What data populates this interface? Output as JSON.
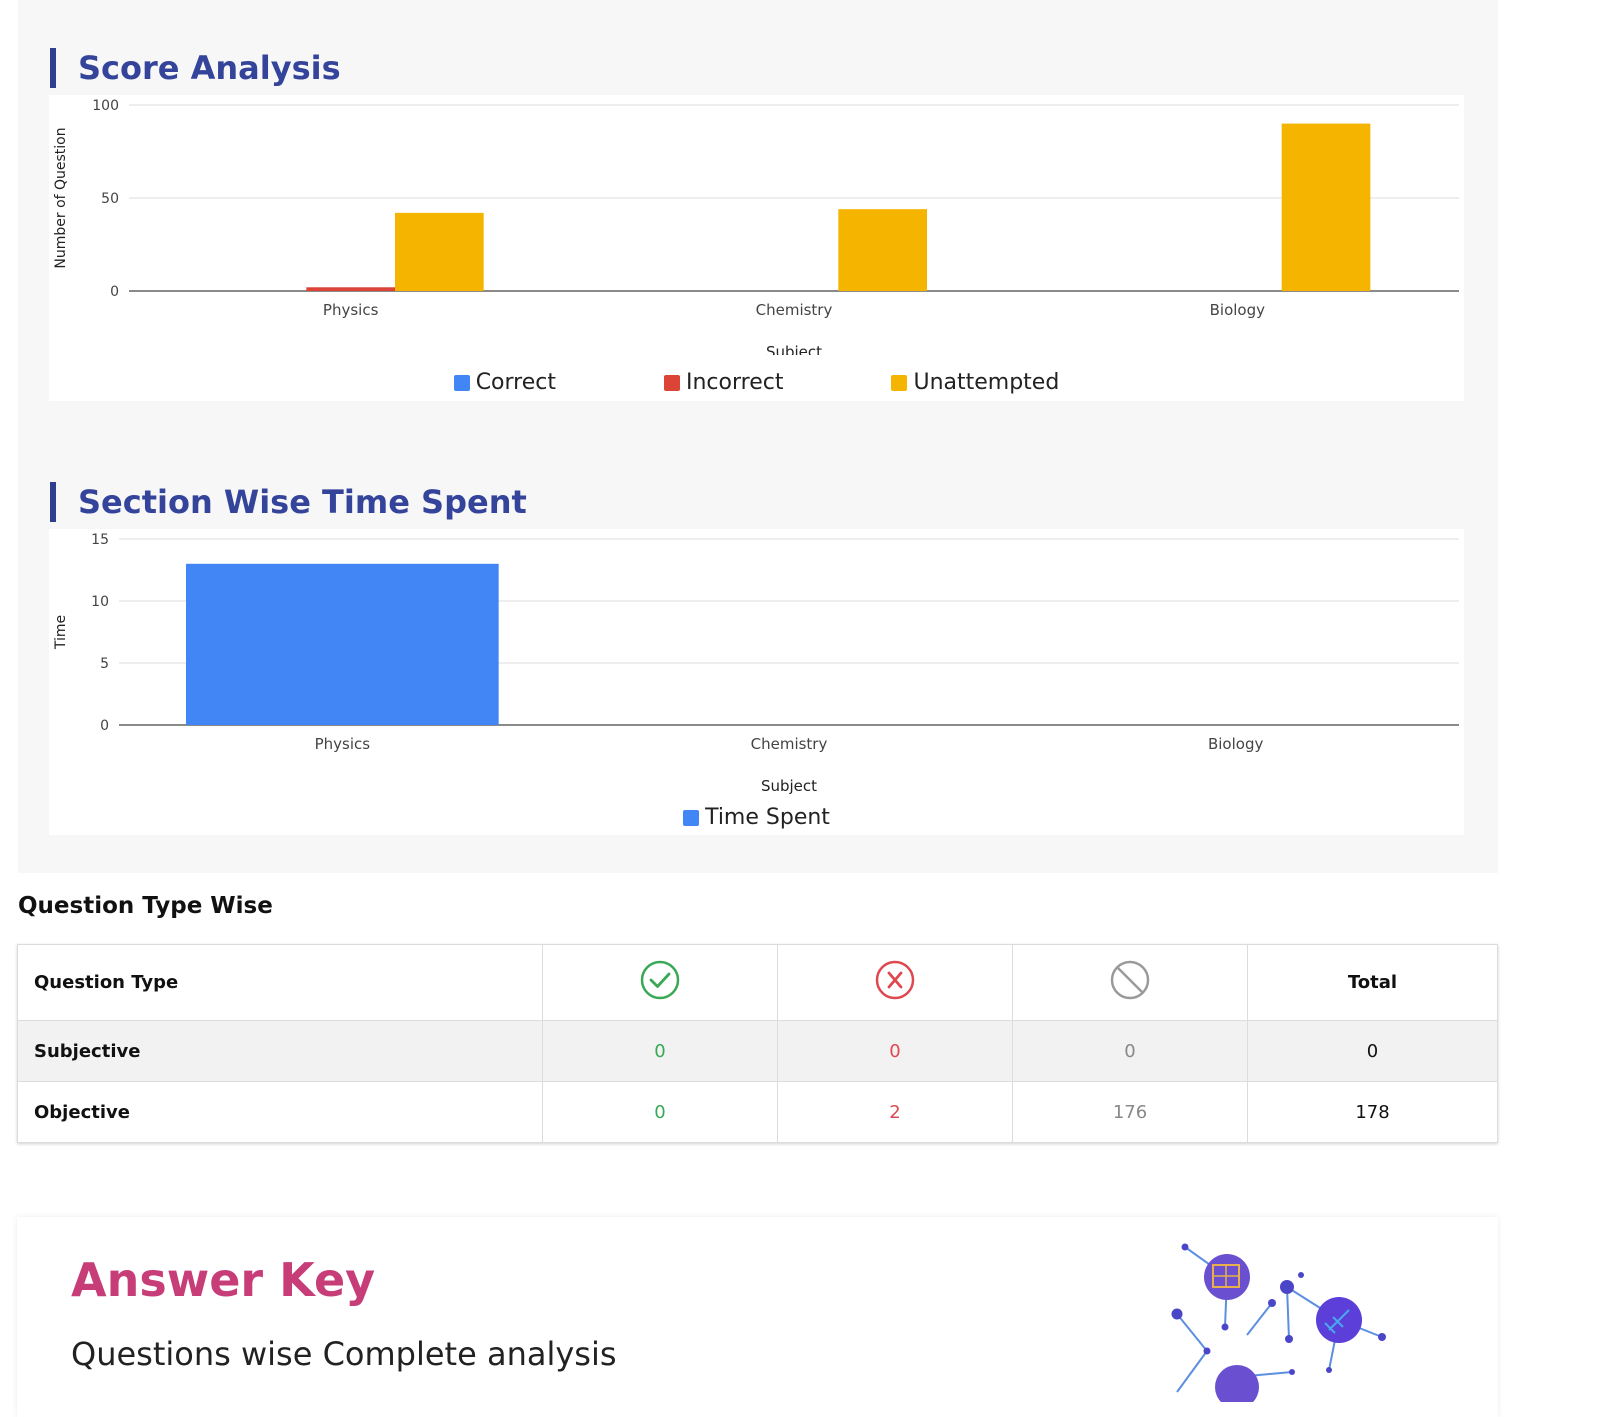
{
  "score_analysis": {
    "title": "Score Analysis",
    "chart_data": {
      "type": "bar",
      "categories": [
        "Physics",
        "Chemistry",
        "Biology"
      ],
      "series": [
        {
          "name": "Correct",
          "color": "#4285f4",
          "values": [
            0,
            0,
            0
          ]
        },
        {
          "name": "Incorrect",
          "color": "#db4437",
          "values": [
            2,
            0,
            0
          ]
        },
        {
          "name": "Unattempted",
          "color": "#f4b400",
          "values": [
            42,
            44,
            90
          ]
        }
      ],
      "xlabel": "Subject",
      "ylabel": "Number of Question",
      "ylim": [
        0,
        100
      ],
      "yticks": [
        0,
        50,
        100
      ],
      "grid": true,
      "legend": "bottom"
    }
  },
  "time_spent": {
    "title": "Section Wise Time Spent",
    "chart_data": {
      "type": "bar",
      "categories": [
        "Physics",
        "Chemistry",
        "Biology"
      ],
      "series": [
        {
          "name": "Time Spent",
          "color": "#4285f4",
          "values": [
            13,
            0,
            0
          ]
        }
      ],
      "xlabel": "Subject",
      "ylabel": "Time",
      "ylim": [
        0,
        15
      ],
      "yticks": [
        0,
        5,
        10,
        15
      ],
      "grid": true,
      "legend": "bottom"
    }
  },
  "question_type": {
    "title": "Question Type Wise",
    "header": {
      "type_label": "Question Type",
      "total_label": "Total"
    },
    "icons": [
      "check-circle-icon",
      "x-circle-icon",
      "ban-circle-icon"
    ],
    "rows": [
      {
        "label": "Subjective",
        "correct": "0",
        "incorrect": "0",
        "unattempted": "0",
        "total": "0"
      },
      {
        "label": "Objective",
        "correct": "0",
        "incorrect": "2",
        "unattempted": "176",
        "total": "178"
      }
    ]
  },
  "answer_key": {
    "title": "Answer Key",
    "subtitle": "Questions wise Complete analysis"
  }
}
